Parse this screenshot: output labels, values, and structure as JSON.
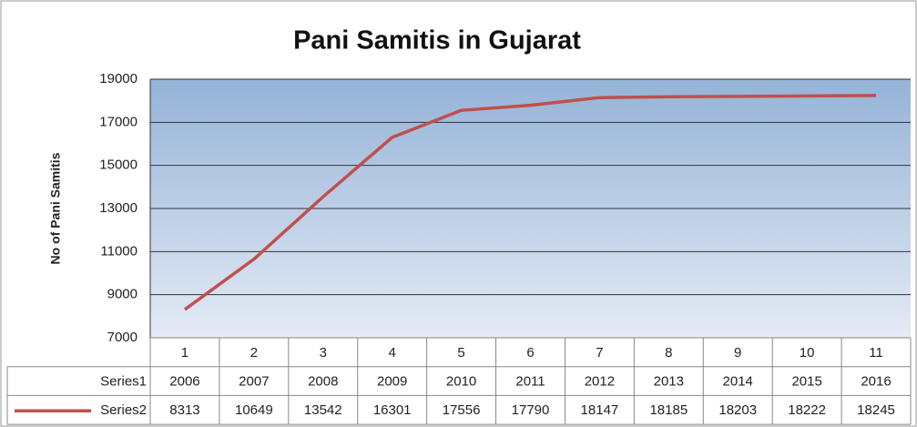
{
  "chart_data": {
    "type": "line",
    "title": "Pani Samitis in Gujarat",
    "y_label": "No of Pani Samitis",
    "categories": [
      1,
      2,
      3,
      4,
      5,
      6,
      7,
      8,
      9,
      10,
      11
    ],
    "series": [
      {
        "name": "Series1",
        "values": [
          2006,
          2007,
          2008,
          2009,
          2010,
          2011,
          2012,
          2013,
          2014,
          2015,
          2016
        ]
      },
      {
        "name": "Series2",
        "color": "#c0504d",
        "values": [
          8313,
          10649,
          13542,
          16301,
          17556,
          17790,
          18147,
          18185,
          18203,
          18222,
          18245
        ]
      }
    ],
    "ylim": [
      7000,
      19000
    ],
    "yticks": [
      7000,
      9000,
      11000,
      13000,
      15000,
      17000,
      19000
    ],
    "grid": true
  }
}
